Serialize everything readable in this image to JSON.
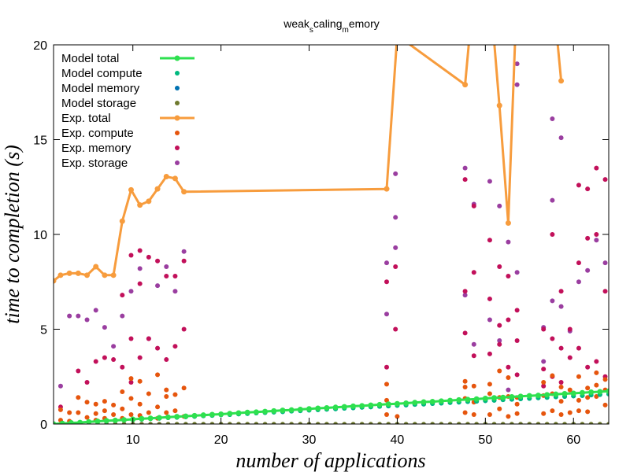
{
  "chart_data": {
    "type": "line",
    "title": {
      "main": "weak",
      "sub1": "s",
      "mid": "caling",
      "sub2": "m",
      "end": "emory"
    },
    "xlabel": "number of applications",
    "ylabel": "time to completion (s)",
    "xlim": [
      1,
      64
    ],
    "ylim": [
      0,
      20
    ],
    "xticks": [
      10,
      20,
      30,
      40,
      50,
      60
    ],
    "yticks": [
      0,
      5,
      10,
      15,
      20
    ],
    "legend_position": "top-left",
    "colors": {
      "model_total": "#2ee04f",
      "model_compute": "#00b97f",
      "model_memory": "#0072b2",
      "model_storage": "#6f7a2e",
      "exp_total": "#f79c3d",
      "exp_compute": "#e6550d",
      "exp_memory": "#c2105a",
      "exp_storage": "#9a3ea0"
    },
    "series": [
      {
        "name": "Model total",
        "kind": "line-points",
        "x": [
          1,
          2,
          3,
          4,
          5,
          6,
          7,
          8,
          9,
          10,
          11,
          12,
          13,
          14,
          15,
          16,
          17,
          18,
          19,
          20,
          21,
          22,
          23,
          24,
          25,
          26,
          27,
          28,
          29,
          30,
          31,
          32,
          33,
          34,
          35,
          36,
          37,
          38,
          39,
          40,
          41,
          42,
          43,
          44,
          45,
          46,
          47,
          48,
          49,
          50,
          51,
          52,
          53,
          54,
          55,
          56,
          57,
          58,
          59,
          60,
          61,
          62,
          63,
          64
        ],
        "y": [
          0.0,
          0.03,
          0.06,
          0.08,
          0.11,
          0.14,
          0.17,
          0.19,
          0.22,
          0.25,
          0.28,
          0.3,
          0.33,
          0.36,
          0.39,
          0.41,
          0.44,
          0.47,
          0.5,
          0.52,
          0.55,
          0.58,
          0.61,
          0.63,
          0.66,
          0.69,
          0.72,
          0.74,
          0.77,
          0.8,
          0.83,
          0.85,
          0.88,
          0.91,
          0.94,
          0.96,
          0.99,
          1.02,
          1.05,
          1.07,
          1.1,
          1.13,
          1.16,
          1.18,
          1.21,
          1.24,
          1.27,
          1.29,
          1.32,
          1.35,
          1.38,
          1.4,
          1.43,
          1.46,
          1.49,
          1.51,
          1.54,
          1.57,
          1.6,
          1.62,
          1.65,
          1.68,
          1.7,
          1.73
        ]
      },
      {
        "name": "Model compute",
        "kind": "points",
        "x": [
          1,
          2,
          3,
          4,
          5,
          6,
          7,
          8,
          9,
          10,
          11,
          12,
          13,
          14,
          15,
          16,
          17,
          18,
          19,
          20,
          21,
          22,
          23,
          24,
          25,
          26,
          27,
          28,
          29,
          30,
          31,
          32,
          33,
          34,
          35,
          36,
          37,
          38,
          39,
          40,
          41,
          42,
          43,
          44,
          45,
          46,
          47,
          48,
          49,
          50,
          51,
          52,
          53,
          54,
          55,
          56,
          57,
          58,
          59,
          60,
          61,
          62,
          63,
          64
        ],
        "y": [
          0.0,
          0.03,
          0.05,
          0.08,
          0.1,
          0.13,
          0.15,
          0.18,
          0.2,
          0.23,
          0.25,
          0.28,
          0.3,
          0.33,
          0.35,
          0.38,
          0.4,
          0.43,
          0.45,
          0.48,
          0.5,
          0.53,
          0.55,
          0.58,
          0.6,
          0.63,
          0.65,
          0.68,
          0.7,
          0.73,
          0.75,
          0.78,
          0.8,
          0.83,
          0.85,
          0.88,
          0.9,
          0.93,
          0.95,
          0.98,
          1.0,
          1.03,
          1.05,
          1.08,
          1.1,
          1.13,
          1.15,
          1.18,
          1.2,
          1.23,
          1.25,
          1.28,
          1.3,
          1.33,
          1.35,
          1.38,
          1.4,
          1.43,
          1.45,
          1.48,
          1.5,
          1.53,
          1.55,
          1.58
        ]
      },
      {
        "name": "Model memory",
        "kind": "points",
        "x": [
          1,
          2,
          3,
          4,
          5,
          6,
          7,
          8,
          9,
          10,
          11,
          12,
          13,
          14,
          15,
          16,
          17,
          18,
          19,
          20,
          21,
          22,
          23,
          24,
          25,
          26,
          27,
          28,
          29,
          30,
          31,
          32,
          33,
          34,
          35,
          36,
          37,
          38,
          39,
          40,
          41,
          42,
          43,
          44,
          45,
          46,
          47,
          48,
          49,
          50,
          51,
          52,
          53,
          54,
          55,
          56,
          57,
          58,
          59,
          60,
          61,
          62,
          63,
          64
        ],
        "y": [
          0.0,
          0.03,
          0.05,
          0.08,
          0.1,
          0.13,
          0.15,
          0.18,
          0.2,
          0.23,
          0.25,
          0.28,
          0.3,
          0.33,
          0.35,
          0.38,
          0.4,
          0.43,
          0.45,
          0.48,
          0.5,
          0.53,
          0.55,
          0.58,
          0.6,
          0.63,
          0.65,
          0.68,
          0.7,
          0.73,
          0.75,
          0.78,
          0.8,
          0.83,
          0.85,
          0.88,
          0.9,
          0.93,
          0.95,
          0.98,
          1.0,
          1.03,
          1.05,
          1.08,
          1.1,
          1.13,
          1.15,
          1.18,
          1.2,
          1.23,
          1.25,
          1.28,
          1.3,
          1.33,
          1.35,
          1.38,
          1.4,
          1.43,
          1.45,
          1.48,
          1.5,
          1.53,
          1.55,
          1.58
        ]
      },
      {
        "name": "Model storage",
        "kind": "points",
        "x": [
          1,
          2,
          3,
          4,
          5,
          6,
          7,
          8,
          9,
          10,
          11,
          12,
          13,
          14,
          15,
          16,
          17,
          18,
          19,
          20,
          21,
          22,
          23,
          24,
          25,
          26,
          27,
          28,
          29,
          30,
          31,
          32,
          33,
          34,
          35,
          36,
          37,
          38,
          39,
          40,
          41,
          42,
          43,
          44,
          45,
          46,
          47,
          48,
          49,
          50,
          51,
          52,
          53,
          54,
          55,
          56,
          57,
          58,
          59,
          60,
          61,
          62,
          63,
          64
        ],
        "y": [
          0,
          0,
          0,
          0,
          0,
          0,
          0,
          0,
          0,
          0,
          0,
          0,
          0,
          0,
          0,
          0,
          0,
          0,
          0,
          0,
          0,
          0,
          0,
          0,
          0,
          0,
          0,
          0,
          0,
          0,
          0,
          0,
          0,
          0,
          0,
          0,
          0,
          0,
          0,
          0,
          0,
          0,
          0,
          0,
          0,
          0,
          0,
          0,
          0,
          0,
          0,
          0,
          0,
          0,
          0,
          0,
          0,
          0,
          0,
          0,
          0,
          0,
          0,
          0
        ]
      },
      {
        "name": "Exp.  total",
        "kind": "line-points",
        "x": [
          1,
          1.8,
          2.8,
          3.8,
          4.8,
          5.8,
          6.8,
          7.8,
          8.8,
          9.8,
          10.8,
          11.8,
          12.8,
          13.8,
          14.8,
          15.8,
          38.8,
          40,
          47.7,
          48.7,
          50.5,
          51.6,
          52.6,
          53.6,
          57.6,
          58.6
        ],
        "y": [
          7.55,
          7.85,
          7.95,
          7.95,
          7.85,
          8.3,
          7.85,
          7.85,
          10.7,
          12.35,
          11.55,
          11.75,
          12.4,
          13.05,
          12.95,
          12.25,
          12.4,
          20.5,
          17.9,
          23.0,
          23.0,
          16.8,
          10.6,
          23.0,
          23.0,
          18.1
        ]
      },
      {
        "name": "Exp.  compute",
        "kind": "points",
        "x": [
          1.8,
          1.8,
          2.8,
          2.8,
          3.8,
          3.8,
          4.8,
          4.8,
          5.8,
          5.8,
          5.8,
          6.8,
          6.8,
          6.8,
          7.8,
          7.8,
          8.8,
          8.8,
          8.8,
          9.8,
          9.8,
          9.8,
          10.8,
          10.8,
          10.8,
          11.8,
          11.8,
          12.8,
          12.8,
          12.8,
          13.8,
          13.8,
          13.8,
          14.8,
          14.8,
          15.8,
          15.8,
          38.8,
          38.8,
          38.8,
          40,
          47.7,
          47.7,
          47.7,
          47.7,
          48.7,
          48.7,
          48.7,
          50.5,
          50.5,
          50.5,
          51.6,
          51.6,
          51.6,
          52.6,
          52.6,
          52.6,
          53.6,
          53.6,
          53.6,
          56.6,
          56.6,
          56.6,
          57.6,
          57.6,
          57.6,
          58.6,
          58.6,
          58.6,
          59.6,
          59.6,
          60.6,
          60.6,
          60.6,
          61.6,
          61.6,
          61.6,
          62.6,
          62.6,
          62.6,
          63.6,
          63.6,
          63.6
        ],
        "y": [
          0.2,
          0.75,
          0.15,
          0.6,
          0.6,
          1.4,
          0.35,
          1.15,
          0.2,
          0.55,
          1.05,
          0.3,
          0.7,
          1.2,
          0.5,
          1.0,
          0.3,
          0.8,
          1.7,
          0.5,
          1.35,
          2.4,
          0.45,
          1.05,
          2.25,
          0.6,
          1.6,
          0.3,
          0.9,
          2.6,
          0.6,
          1.8,
          1.45,
          0.7,
          1.55,
          0.4,
          1.9,
          0.5,
          1.25,
          2.1,
          0.4,
          0.6,
          1.35,
          1.95,
          2.25,
          0.5,
          1.15,
          2.0,
          0.5,
          1.6,
          2.1,
          0.8,
          1.4,
          2.8,
          0.4,
          1.45,
          2.45,
          0.55,
          1.05,
          1.4,
          0.55,
          1.5,
          2.2,
          0.7,
          1.6,
          2.55,
          0.5,
          1.2,
          1.95,
          0.6,
          1.8,
          0.7,
          1.25,
          2.5,
          0.65,
          1.4,
          1.9,
          1.45,
          2.05,
          2.7,
          1.0,
          1.8,
          2.35
        ]
      },
      {
        "name": "Exp.  memory",
        "kind": "points",
        "x": [
          1.8,
          3.8,
          4.8,
          5.8,
          6.8,
          7.8,
          8.8,
          8.8,
          9.8,
          9.8,
          9.8,
          10.8,
          10.8,
          10.8,
          11.8,
          11.8,
          12.8,
          12.8,
          13.8,
          13.8,
          14.8,
          14.8,
          15.8,
          15.8,
          38.8,
          38.8,
          39.8,
          39.8,
          47.7,
          47.7,
          47.7,
          48.7,
          48.7,
          48.7,
          50.5,
          50.5,
          50.5,
          51.6,
          51.6,
          51.6,
          52.6,
          52.6,
          52.6,
          53.6,
          53.6,
          53.6,
          56.6,
          56.6,
          56.6,
          57.6,
          57.6,
          57.6,
          58.6,
          58.6,
          58.6,
          59.6,
          59.6,
          60.6,
          60.6,
          60.6,
          61.6,
          61.6,
          61.6,
          62.6,
          62.6,
          62.6,
          63.6,
          63.6,
          63.6
        ],
        "y": [
          0.9,
          2.8,
          2.2,
          3.3,
          3.5,
          3.4,
          3.0,
          6.8,
          2.2,
          4.5,
          8.9,
          3.5,
          7.4,
          9.15,
          4.5,
          8.8,
          4.0,
          8.6,
          3.4,
          7.8,
          4.1,
          7.8,
          5.0,
          8.6,
          3.0,
          7.5,
          5.0,
          8.3,
          4.8,
          7.0,
          12.9,
          3.6,
          8.0,
          11.5,
          3.7,
          6.6,
          9.7,
          4.2,
          5.2,
          8.3,
          3.0,
          5.5,
          7.8,
          2.6,
          4.4,
          6.0,
          2.0,
          2.9,
          5.0,
          2.5,
          4.5,
          10.0,
          2.2,
          4.0,
          7.0,
          3.5,
          5.0,
          4.0,
          8.5,
          12.6,
          3.0,
          9.8,
          12.4,
          3.3,
          10.0,
          13.5,
          2.5,
          7.0,
          12.9
        ]
      },
      {
        "name": "Exp.  storage",
        "kind": "points",
        "x": [
          1.8,
          2.8,
          3.8,
          4.8,
          5.8,
          6.8,
          7.8,
          8.8,
          9.8,
          10.8,
          11.8,
          12.8,
          13.8,
          14.8,
          15.8,
          38.8,
          38.8,
          39.8,
          39.8,
          39.8,
          47.7,
          47.7,
          48.7,
          48.7,
          50.5,
          50.5,
          51.6,
          51.6,
          52.6,
          52.6,
          53.6,
          53.6,
          53.6,
          56.6,
          56.6,
          57.6,
          57.6,
          57.6,
          58.6,
          58.6,
          59.6,
          60.6,
          61.6,
          62.6,
          63.6
        ],
        "y": [
          2.0,
          5.7,
          5.7,
          5.5,
          6.0,
          5.1,
          4.1,
          5.7,
          7.0,
          8.2,
          4.5,
          7.3,
          8.3,
          7.0,
          9.1,
          5.8,
          8.5,
          9.3,
          10.9,
          13.2,
          6.8,
          13.5,
          4.2,
          11.6,
          5.5,
          12.8,
          4.4,
          11.5,
          1.8,
          9.6,
          8.0,
          17.9,
          19.0,
          3.3,
          5.1,
          6.5,
          11.8,
          16.1,
          6.2,
          15.1,
          4.9,
          7.5,
          8.1,
          9.7,
          8.5
        ]
      }
    ]
  }
}
